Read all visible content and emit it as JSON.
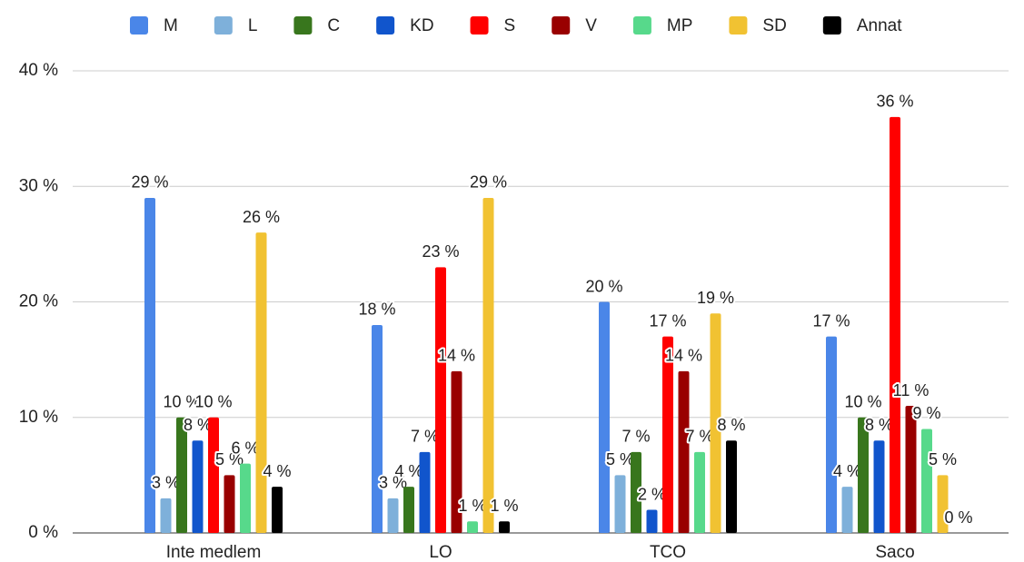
{
  "chart_data": {
    "type": "bar",
    "categories": [
      "Inte medlem",
      "LO",
      "TCO",
      "Saco"
    ],
    "series": [
      {
        "name": "M",
        "color": "#4a86e8",
        "values": [
          29,
          18,
          20,
          17
        ],
        "value_labels": [
          "29 %",
          "18 %",
          "20 %",
          "17 %"
        ]
      },
      {
        "name": "L",
        "color": "#7eb0da",
        "values": [
          3,
          3,
          5,
          4
        ],
        "value_labels": [
          "3 %",
          "3 %",
          "5 %",
          "4 %"
        ]
      },
      {
        "name": "C",
        "color": "#38761d",
        "values": [
          10,
          4,
          7,
          10
        ],
        "value_labels": [
          "10 %",
          "4 %",
          "7 %",
          "10 %"
        ]
      },
      {
        "name": "KD",
        "color": "#1155cc",
        "values": [
          8,
          7,
          2,
          8
        ],
        "value_labels": [
          "8 %",
          "7 %",
          "2 %",
          "8 %"
        ]
      },
      {
        "name": "S",
        "color": "#ff0000",
        "values": [
          10,
          23,
          17,
          36
        ],
        "value_labels": [
          "10 %",
          "23 %",
          "17 %",
          "36 %"
        ]
      },
      {
        "name": "V",
        "color": "#990000",
        "values": [
          5,
          14,
          14,
          11
        ],
        "value_labels": [
          "5 %",
          "14 %",
          "14 %",
          "11 %"
        ]
      },
      {
        "name": "MP",
        "color": "#57d98b",
        "values": [
          6,
          1,
          7,
          9
        ],
        "value_labels": [
          "6 %",
          "1 %",
          "7 %",
          "9 %"
        ]
      },
      {
        "name": "SD",
        "color": "#f1c232",
        "values": [
          26,
          29,
          19,
          5
        ],
        "value_labels": [
          "26 %",
          "29 %",
          "19 %",
          "5 %"
        ]
      },
      {
        "name": "Annat",
        "color": "#000000",
        "values": [
          4,
          1,
          8,
          0
        ],
        "value_labels": [
          "4 %",
          "1 %",
          "8 %",
          "0 %"
        ]
      }
    ],
    "ylim": [
      0,
      40
    ],
    "yticks": [
      {
        "value": 0,
        "label": "0 %"
      },
      {
        "value": 10,
        "label": "10 %"
      },
      {
        "value": 20,
        "label": "20 %"
      },
      {
        "value": 30,
        "label": "30 %"
      },
      {
        "value": 40,
        "label": "40 %"
      }
    ],
    "grid": true,
    "legend": "top"
  }
}
